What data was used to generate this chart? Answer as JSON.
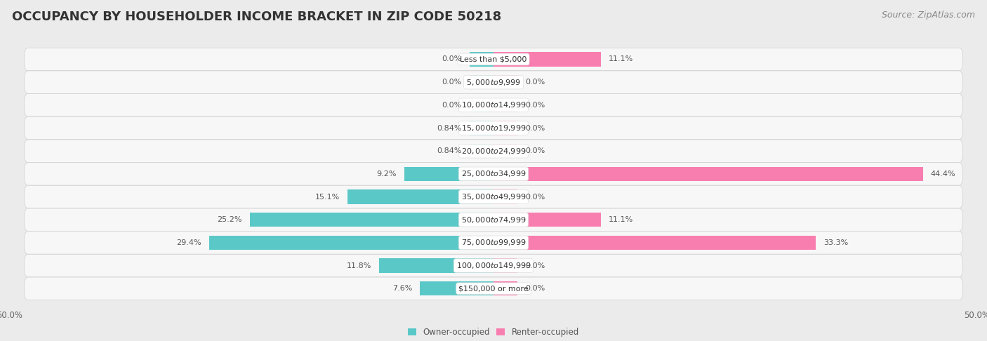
{
  "title": "OCCUPANCY BY HOUSEHOLDER INCOME BRACKET IN ZIP CODE 50218",
  "source": "Source: ZipAtlas.com",
  "categories": [
    "Less than $5,000",
    "$5,000 to $9,999",
    "$10,000 to $14,999",
    "$15,000 to $19,999",
    "$20,000 to $24,999",
    "$25,000 to $34,999",
    "$35,000 to $49,999",
    "$50,000 to $74,999",
    "$75,000 to $99,999",
    "$100,000 to $149,999",
    "$150,000 or more"
  ],
  "owner_values": [
    0.0,
    0.0,
    0.0,
    0.84,
    0.84,
    9.2,
    15.1,
    25.2,
    29.4,
    11.8,
    7.6
  ],
  "renter_values": [
    11.1,
    0.0,
    0.0,
    0.0,
    0.0,
    44.4,
    0.0,
    11.1,
    33.3,
    0.0,
    0.0
  ],
  "owner_color": "#5bc8c8",
  "renter_color": "#f87eb0",
  "background_color": "#ebebeb",
  "bar_background": "#f7f7f7",
  "bar_height": 0.62,
  "xlim": 50.0,
  "legend_labels": [
    "Owner-occupied",
    "Renter-occupied"
  ],
  "title_fontsize": 13,
  "label_fontsize": 8.5,
  "source_fontsize": 9,
  "value_label_fontsize": 8,
  "cat_label_fontsize": 8,
  "min_bar_pct": 2.5
}
